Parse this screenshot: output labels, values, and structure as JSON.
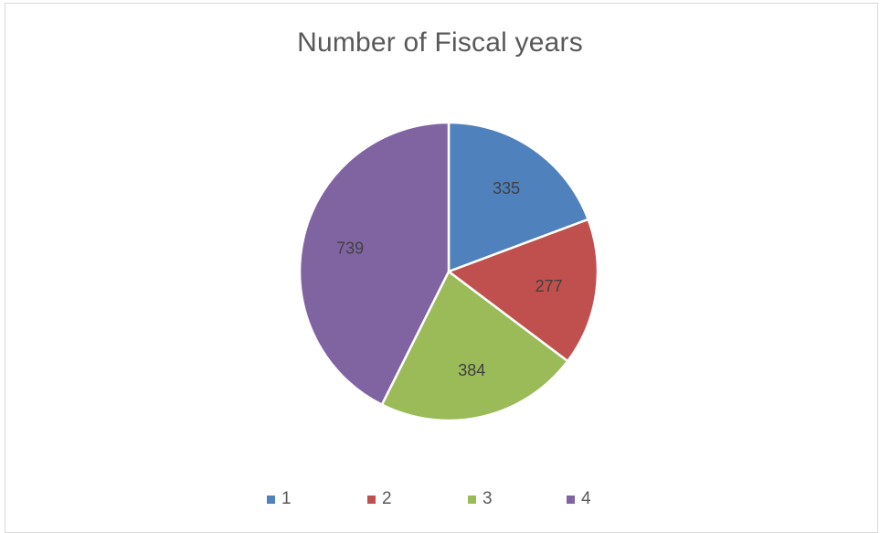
{
  "chart_data": {
    "type": "pie",
    "title": "Number of Fiscal years",
    "categories": [
      "1",
      "2",
      "3",
      "4"
    ],
    "values": [
      335,
      277,
      384,
      739
    ],
    "colors": [
      "#4f81bd",
      "#c0504d",
      "#9bbb59",
      "#8064a2"
    ],
    "data_labels": [
      "335",
      "277",
      "384",
      "739"
    ],
    "legend_position": "bottom",
    "start_angle": "12 o'clock",
    "direction": "clockwise"
  }
}
